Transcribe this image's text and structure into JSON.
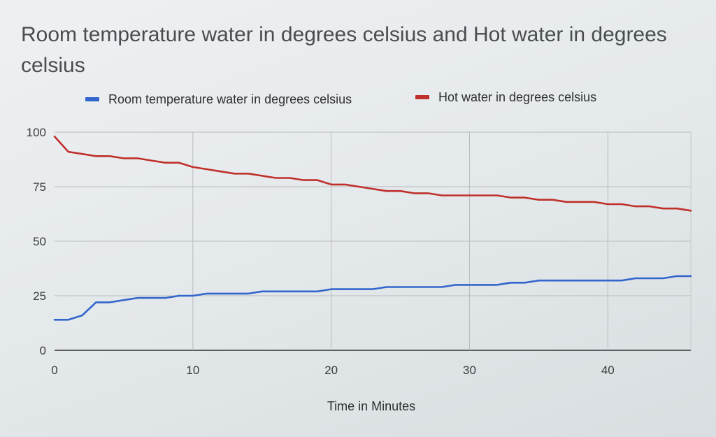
{
  "chart_data": {
    "type": "line",
    "title": "Room temperature water in degrees celsius and Hot water in degrees celsius",
    "xlabel": "Time in Minutes",
    "ylabel": "",
    "xlim": [
      0,
      46
    ],
    "ylim": [
      0,
      100
    ],
    "x_ticks": [
      0,
      10,
      20,
      30,
      40
    ],
    "y_ticks": [
      0,
      25,
      50,
      75,
      100
    ],
    "grid": true,
    "legend_position": "top",
    "x": [
      0,
      1,
      2,
      3,
      4,
      5,
      6,
      7,
      8,
      9,
      10,
      11,
      12,
      13,
      14,
      15,
      16,
      17,
      18,
      19,
      20,
      21,
      22,
      23,
      24,
      25,
      26,
      27,
      28,
      29,
      30,
      31,
      32,
      33,
      34,
      35,
      36,
      37,
      38,
      39,
      40,
      41,
      42,
      43,
      44,
      45,
      46
    ],
    "series": [
      {
        "name": "Room temperature water in degrees celsius",
        "color": "#3366cc",
        "values": [
          14,
          14,
          16,
          22,
          22,
          23,
          24,
          24,
          24,
          25,
          25,
          26,
          26,
          26,
          26,
          27,
          27,
          27,
          27,
          27,
          28,
          28,
          28,
          28,
          29,
          29,
          29,
          29,
          29,
          30,
          30,
          30,
          30,
          31,
          31,
          32,
          32,
          32,
          32,
          32,
          32,
          32,
          33,
          33,
          33,
          34,
          34
        ]
      },
      {
        "name": "Hot water in degrees celsius",
        "color": "#c0302b",
        "values": [
          98,
          91,
          90,
          89,
          89,
          88,
          88,
          87,
          86,
          86,
          84,
          83,
          82,
          81,
          81,
          80,
          79,
          79,
          78,
          78,
          76,
          76,
          75,
          74,
          73,
          73,
          72,
          72,
          71,
          71,
          71,
          71,
          71,
          70,
          70,
          69,
          69,
          68,
          68,
          68,
          67,
          67,
          66,
          66,
          65,
          65,
          64
        ]
      }
    ]
  }
}
